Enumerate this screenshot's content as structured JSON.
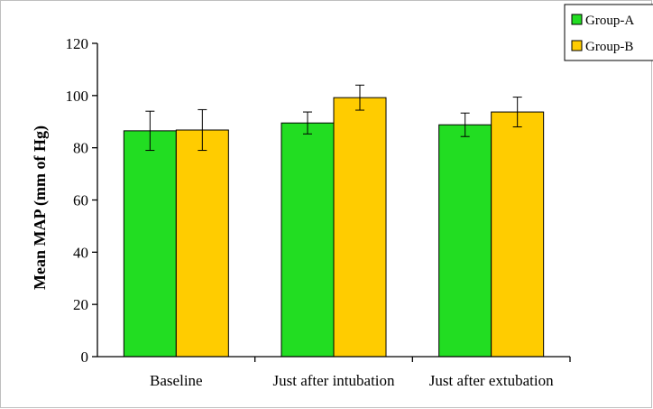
{
  "chart_data": {
    "type": "bar",
    "title": "",
    "xlabel": "",
    "ylabel": "Mean MAP (mm of Hg)",
    "ylim": [
      0,
      120
    ],
    "yticks": [
      0,
      20,
      40,
      60,
      80,
      100,
      120
    ],
    "categories": [
      "Baseline",
      "Just after intubation",
      "Just after extubation"
    ],
    "series": [
      {
        "name": "Group-A",
        "color": "#22dd22",
        "values": [
          86.5,
          89.5,
          88.8
        ],
        "error": [
          7.5,
          4.2,
          4.5
        ]
      },
      {
        "name": "Group-B",
        "color": "#ffcc00",
        "values": [
          86.8,
          99.2,
          93.7
        ],
        "error": [
          7.8,
          4.8,
          5.7
        ]
      }
    ],
    "grid": false,
    "legend_position": "top-right"
  }
}
